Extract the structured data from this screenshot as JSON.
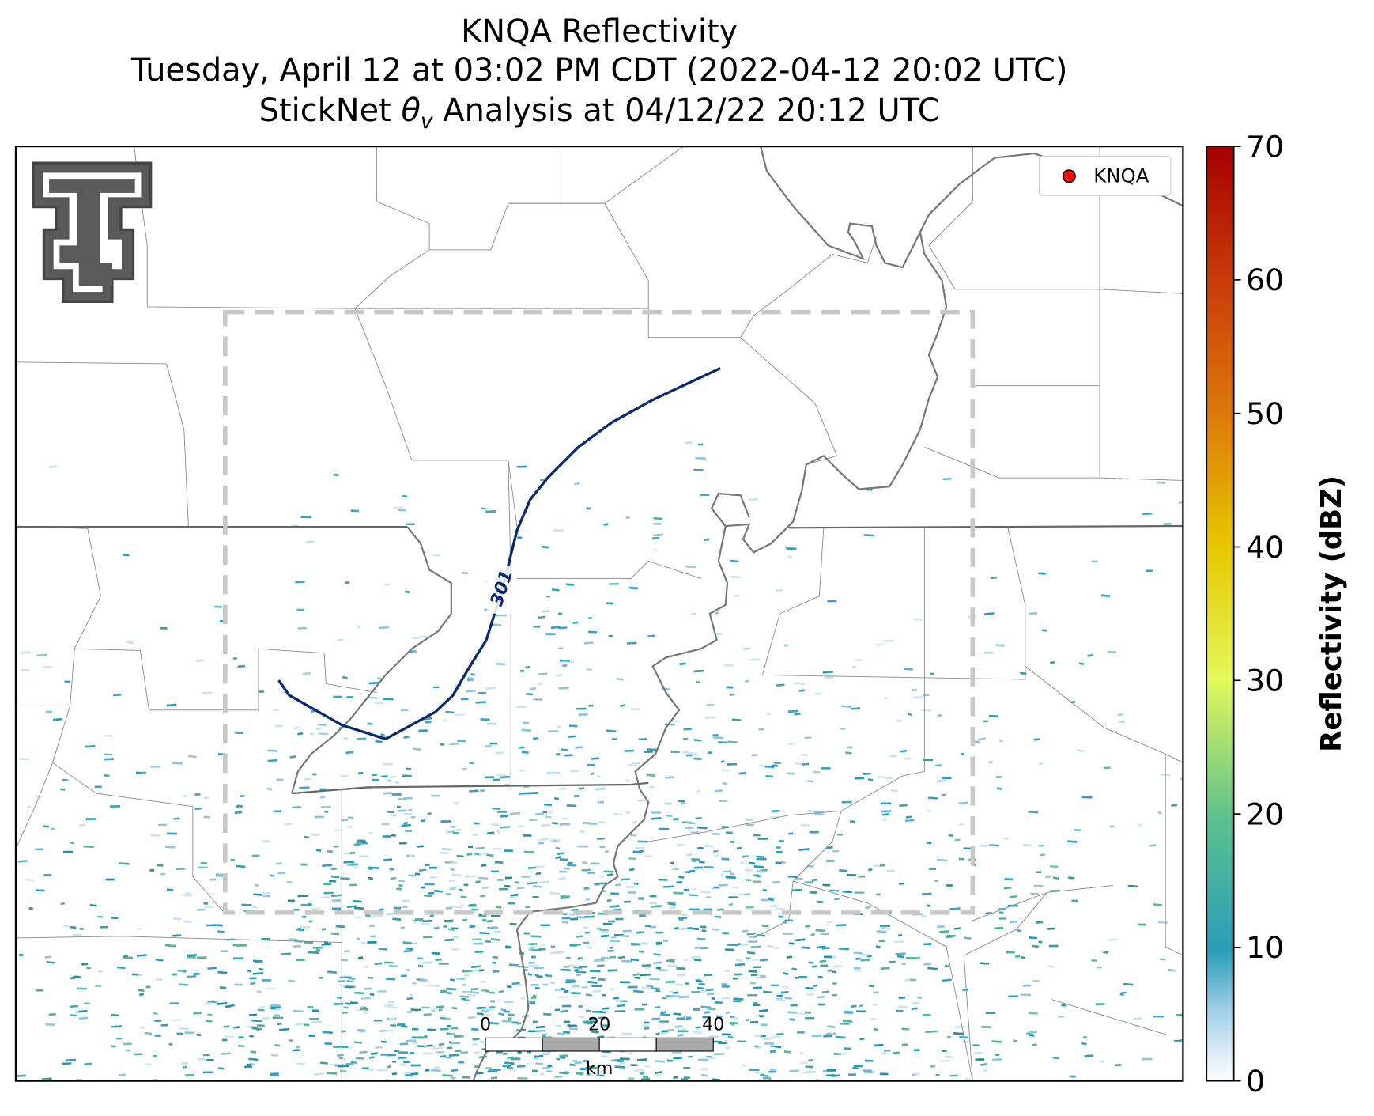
{
  "title": {
    "line1": "KNQA Reflectivity",
    "line2": "Tuesday, April 12 at 03:02 PM CDT (2022-04-12 20:02 UTC)",
    "line3_pre": "StickNet ",
    "line3_symbol": "θ",
    "line3_sub": "v",
    "line3_post": " Analysis at 04/12/22 20:12 UTC"
  },
  "legend": {
    "label": "KNQA",
    "color": "#ff0000"
  },
  "contour": {
    "label": "301",
    "color": "#0a2a6e"
  },
  "scale_bar": {
    "ticks": [
      "0",
      "20",
      "40"
    ],
    "unit": "km"
  },
  "colorbar": {
    "label": "Reflectivity (dBZ)",
    "lim": [
      0,
      70
    ],
    "ticks": [
      0,
      10,
      20,
      30,
      40,
      50,
      60,
      70
    ]
  }
}
